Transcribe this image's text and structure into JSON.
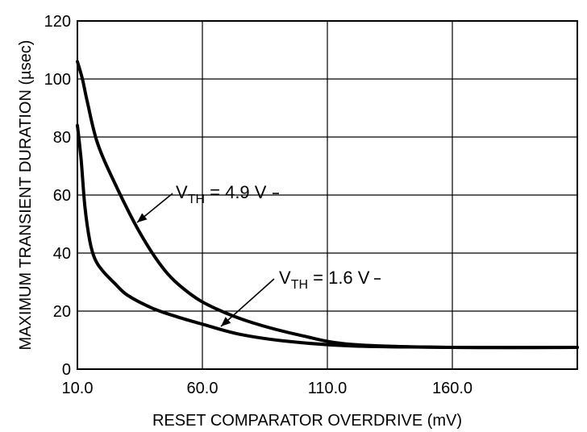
{
  "chart_data": {
    "type": "line",
    "title": "",
    "xlabel": "RESET COMPARATOR OVERDRIVE (mV)",
    "ylabel": "MAXIMUM TRANSIENT DURATION (µsec)",
    "xlim": [
      10,
      210
    ],
    "ylim": [
      0,
      120
    ],
    "grid": true,
    "x_ticks": [
      10,
      60,
      110,
      160
    ],
    "x_tick_labels": [
      "10.0",
      "60.0",
      "110.0",
      "160.0"
    ],
    "y_ticks": [
      0,
      20,
      40,
      60,
      80,
      100,
      120
    ],
    "y_tick_labels": [
      "0",
      "20",
      "40",
      "60",
      "80",
      "100",
      "120"
    ],
    "series": [
      {
        "name": "VTH = 4.9 V",
        "label_main": "V",
        "label_sub": "TH",
        "label_rest": " = 4.9 V",
        "x": [
          10,
          12,
          14,
          18,
          25,
          35,
          45,
          55,
          65,
          80,
          100,
          120,
          160,
          210
        ],
        "y": [
          106,
          100,
          92,
          78,
          64,
          47,
          34,
          26,
          21,
          16,
          11.5,
          8.5,
          7.5,
          7.5
        ]
      },
      {
        "name": "VTH = 1.6 V",
        "label_main": "V",
        "label_sub": "TH",
        "label_rest": " = 1.6 V",
        "x": [
          10,
          11.5,
          13,
          15,
          17,
          20,
          25,
          30,
          40,
          50,
          60,
          75,
          95,
          120,
          160,
          210
        ],
        "y": [
          84,
          72,
          56,
          44,
          38,
          34,
          29.5,
          25.5,
          21,
          18,
          15.5,
          12,
          9.5,
          8,
          7.5,
          7.5
        ]
      }
    ]
  }
}
